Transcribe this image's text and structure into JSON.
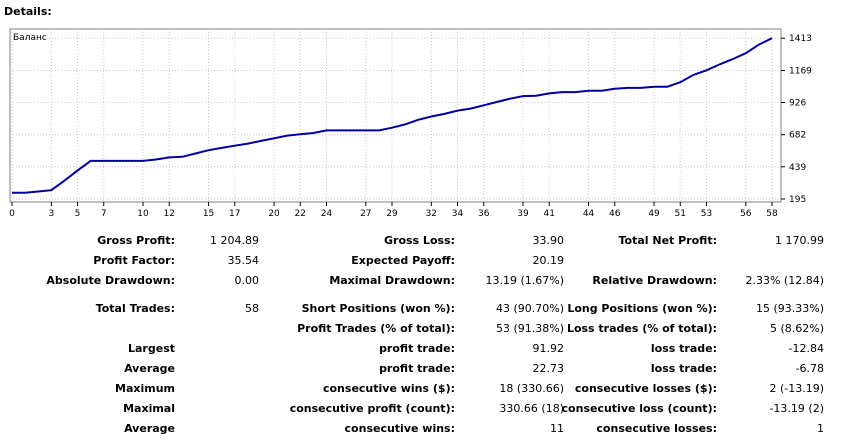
{
  "report": {
    "heading": "Details:"
  },
  "chart_data": {
    "type": "line",
    "title": "Баланс",
    "x_ticks": [
      0,
      3,
      5,
      7,
      10,
      12,
      15,
      17,
      20,
      22,
      24,
      27,
      29,
      32,
      34,
      36,
      39,
      41,
      44,
      46,
      49,
      51,
      53,
      56,
      58
    ],
    "y_ticks": [
      195,
      439,
      682,
      926,
      1169,
      1413
    ],
    "ylim": [
      195,
      1430
    ],
    "xlim": [
      0,
      59
    ],
    "grid": true,
    "series": [
      {
        "color": "#0000a0",
        "x": [
          0,
          1,
          2,
          3,
          4,
          5,
          6,
          7,
          8,
          9,
          10,
          11,
          12,
          13,
          14,
          15,
          16,
          17,
          18,
          19,
          20,
          21,
          22,
          23,
          24,
          25,
          26,
          27,
          28,
          29,
          30,
          31,
          32,
          33,
          34,
          35,
          36,
          37,
          38,
          39,
          40,
          41,
          42,
          43,
          44,
          45,
          46,
          47,
          48,
          49,
          50,
          51,
          52,
          53,
          54,
          55,
          56,
          57,
          58
        ],
        "values": [
          242,
          242,
          252,
          262,
          334,
          410,
          484,
          484,
          484,
          484,
          484,
          494,
          510,
          515,
          540,
          565,
          582,
          599,
          615,
          635,
          655,
          675,
          685,
          695,
          715,
          715,
          715,
          715,
          715,
          735,
          760,
          795,
          820,
          840,
          865,
          880,
          905,
          930,
          955,
          975,
          978,
          995,
          1005,
          1005,
          1015,
          1015,
          1030,
          1037,
          1037,
          1045,
          1045,
          1080,
          1135,
          1170,
          1215,
          1255,
          1300,
          1365,
          1413
        ]
      }
    ]
  },
  "stats": {
    "gross_profit": {
      "label": "Gross Profit:",
      "value": "1 204.89"
    },
    "gross_loss": {
      "label": "Gross Loss:",
      "value": "33.90"
    },
    "total_net_profit": {
      "label": "Total Net Profit:",
      "value": "1 170.99"
    },
    "profit_factor": {
      "label": "Profit Factor:",
      "value": "35.54"
    },
    "expected_payoff": {
      "label": "Expected Payoff:",
      "value": "20.19"
    },
    "absolute_drawdown": {
      "label": "Absolute Drawdown:",
      "value": "0.00"
    },
    "maximal_drawdown": {
      "label": "Maximal Drawdown:",
      "value": "13.19 (1.67%)"
    },
    "relative_drawdown": {
      "label": "Relative Drawdown:",
      "value": "2.33% (12.84)"
    },
    "total_trades": {
      "label": "Total Trades:",
      "value": "58"
    },
    "short_positions": {
      "label": "Short Positions (won %):",
      "value": "43 (90.70%)"
    },
    "long_positions": {
      "label": "Long Positions (won %):",
      "value": "15 (93.33%)"
    },
    "profit_trades": {
      "label": "Profit Trades (% of total):",
      "value": "53 (91.38%)"
    },
    "loss_trades": {
      "label": "Loss trades (% of total):",
      "value": "5 (8.62%)"
    },
    "largest": {
      "label": "Largest",
      "profit_label": "profit trade:",
      "profit_value": "91.92",
      "loss_label": "loss trade:",
      "loss_value": "-12.84"
    },
    "average": {
      "label": "Average",
      "profit_label": "profit trade:",
      "profit_value": "22.73",
      "loss_label": "loss trade:",
      "loss_value": "-6.78"
    },
    "maximum": {
      "label": "Maximum",
      "profit_label": "consecutive wins ($):",
      "profit_value": "18 (330.66)",
      "loss_label": "consecutive losses ($):",
      "loss_value": "2 (-13.19)"
    },
    "maximal": {
      "label": "Maximal",
      "profit_label": "consecutive profit (count):",
      "profit_value": "330.66 (18)",
      "loss_label": "consecutive loss (count):",
      "loss_value": "-13.19 (2)"
    },
    "average_consec": {
      "label": "Average",
      "profit_label": "consecutive wins:",
      "profit_value": "11",
      "loss_label": "consecutive losses:",
      "loss_value": "1"
    }
  }
}
